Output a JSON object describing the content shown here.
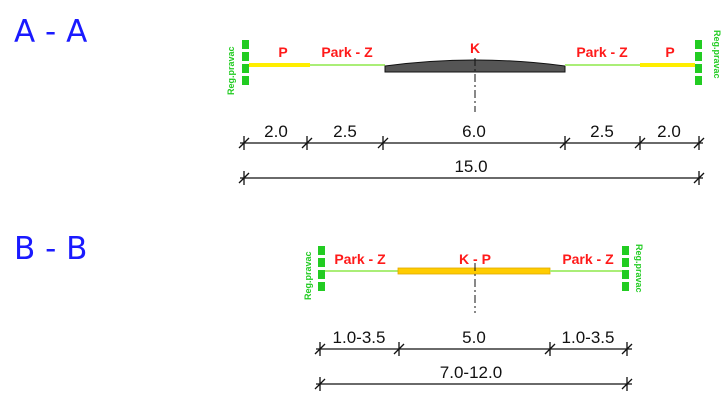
{
  "sections": {
    "aa": {
      "title": "A - A",
      "zones": {
        "left_p": "P",
        "left_park": "Park - Z",
        "center": "K",
        "right_park": "Park - Z",
        "right_p": "P"
      },
      "reg_left": "Reg.pravac",
      "reg_right": "Reg.pravac",
      "dims": [
        "2.0",
        "2.5",
        "6.0",
        "2.5",
        "2.0"
      ],
      "total": "15.0"
    },
    "bb": {
      "title": "B - B",
      "zones": {
        "left_park": "Park - Z",
        "center": "K - P",
        "right_park": "Park - Z"
      },
      "reg_left": "Reg.pravac",
      "reg_right": "Reg.pravac",
      "dims": [
        "1.0-3.5",
        "5.0",
        "1.0-3.5"
      ],
      "total": "7.0-12.0"
    }
  },
  "colors": {
    "title": "#1a1aff",
    "zone_label": "#ff1a1a",
    "reg_line": "#22cc22",
    "parking_strip": "#ffee00",
    "green_strip": "#aaee77",
    "roadway": "#555555",
    "kp_strip": "#ffcc00"
  }
}
